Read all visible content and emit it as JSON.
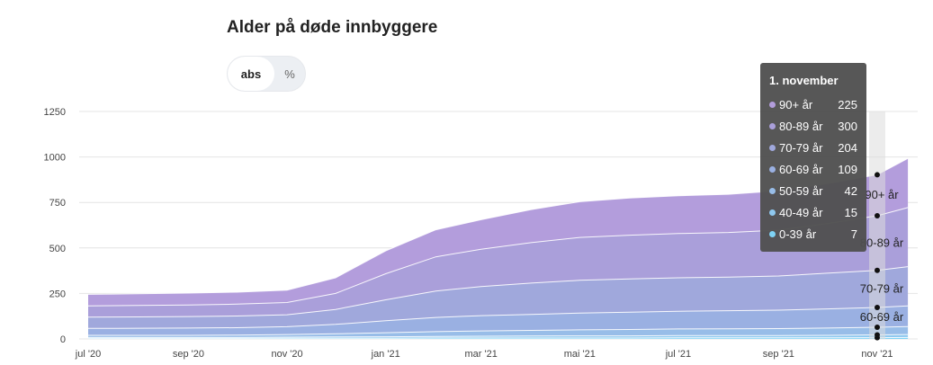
{
  "title": "Alder på døde innbyggere",
  "toggle": {
    "abs_label": "abs",
    "pct_label": "%"
  },
  "tooltip": {
    "title": "1. november",
    "rows": [
      {
        "label": "90+ år",
        "value": "225"
      },
      {
        "label": "80-89 år",
        "value": "300"
      },
      {
        "label": "70-79 år",
        "value": "204"
      },
      {
        "label": "60-69 år",
        "value": "109"
      },
      {
        "label": "50-59 år",
        "value": "42"
      },
      {
        "label": "40-49 år",
        "value": "15"
      },
      {
        "label": "0-39 år",
        "value": "7"
      }
    ]
  },
  "chart_data": {
    "type": "area",
    "stacked": true,
    "title": "Alder på døde innbyggere",
    "xlabel": "",
    "ylabel": "",
    "ylim": [
      0,
      1250
    ],
    "yticks": [
      0,
      250,
      500,
      750,
      1000,
      1250
    ],
    "xticks": [
      "jul '20",
      "sep '20",
      "nov '20",
      "jan '21",
      "mar '21",
      "mai '21",
      "jul '21",
      "sep '21",
      "nov '21"
    ],
    "grid": true,
    "x": [
      "2020-07-01",
      "2020-08-01",
      "2020-09-01",
      "2020-10-01",
      "2020-11-01",
      "2020-12-01",
      "2021-01-01",
      "2021-02-01",
      "2021-03-01",
      "2021-04-01",
      "2021-05-01",
      "2021-06-01",
      "2021-07-01",
      "2021-08-01",
      "2021-09-01",
      "2021-10-01",
      "2021-11-01",
      "2021-11-20"
    ],
    "series": [
      {
        "name": "0-39 år",
        "color": "#7fd3f5",
        "values": [
          3,
          3,
          3,
          3,
          4,
          4,
          4,
          5,
          5,
          5,
          5,
          5,
          6,
          6,
          6,
          6,
          7,
          8
        ]
      },
      {
        "name": "40-49 år",
        "color": "#8fc8ef",
        "values": [
          5,
          5,
          5,
          5,
          6,
          7,
          8,
          9,
          10,
          11,
          12,
          12,
          13,
          13,
          13,
          14,
          15,
          16
        ]
      },
      {
        "name": "50-59 år",
        "color": "#98bde8",
        "values": [
          12,
          12,
          12,
          13,
          14,
          17,
          22,
          26,
          29,
          31,
          33,
          35,
          36,
          37,
          38,
          40,
          42,
          44
        ]
      },
      {
        "name": "60-69 år",
        "color": "#9ab0e2",
        "values": [
          38,
          39,
          40,
          41,
          43,
          52,
          66,
          78,
          84,
          88,
          92,
          95,
          97,
          99,
          101,
          105,
          109,
          114
        ]
      },
      {
        "name": "70-79 år",
        "color": "#a0a8dc",
        "values": [
          62,
          62,
          63,
          64,
          66,
          82,
          115,
          145,
          160,
          172,
          180,
          183,
          184,
          185,
          188,
          196,
          204,
          215
        ]
      },
      {
        "name": "80-89 år",
        "color": "#aa9fda",
        "values": [
          62,
          63,
          64,
          65,
          67,
          88,
          143,
          188,
          205,
          222,
          236,
          240,
          243,
          245,
          252,
          273,
          300,
          325
        ]
      },
      {
        "name": "90+ år",
        "color": "#b39ddc",
        "values": [
          63,
          64,
          65,
          66,
          68,
          86,
          126,
          149,
          162,
          182,
          196,
          204,
          208,
          210,
          216,
          220,
          225,
          270
        ]
      }
    ],
    "hover": {
      "date": "2021-11-01",
      "label": "1. november"
    }
  }
}
